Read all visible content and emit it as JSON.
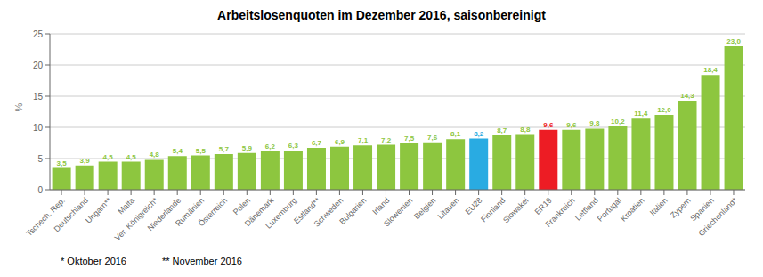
{
  "chart_data": {
    "type": "bar",
    "title": "Arbeitslosenquoten im Dezember 2016, saisonbereinigt",
    "ylabel": "%",
    "annotations": [
      "* Oktober 2016",
      "** November 2016"
    ],
    "categories": [
      "Tschech. Rep.",
      "Deutschland",
      "Ungarn**",
      "Malta",
      "Ver. Königreich*",
      "Niederlande",
      "Rumänien",
      "Österreich",
      "Polen",
      "Dänemark",
      "Luxemburg",
      "Estland**",
      "Schweden",
      "Bulgarien",
      "Irland",
      "Slowenien",
      "Belgien",
      "Litauen",
      "EU28",
      "Finnland",
      "Slowakei",
      "ER19",
      "Frankreich",
      "Lettland",
      "Portugal",
      "Kroatien",
      "Italien",
      "Zypern",
      "Spanien",
      "Griechenland*"
    ],
    "values": [
      3.5,
      3.9,
      4.5,
      4.5,
      4.8,
      5.4,
      5.5,
      5.7,
      5.9,
      6.2,
      6.3,
      6.7,
      6.9,
      7.1,
      7.2,
      7.5,
      7.6,
      8.1,
      8.2,
      8.7,
      8.8,
      9.6,
      9.6,
      9.8,
      10.2,
      11.4,
      12.0,
      14.3,
      18.4,
      23.0
    ],
    "value_labels": [
      "3,5",
      "3,9",
      "4,5",
      "4,5",
      "4,8",
      "5,4",
      "5,5",
      "5,7",
      "5,9",
      "6,2",
      "6,3",
      "6,7",
      "6,9",
      "7,1",
      "7,2",
      "7,5",
      "7,6",
      "8,1",
      "8,2",
      "8,7",
      "8,8",
      "9,6",
      "9,6",
      "9,8",
      "10,2",
      "11,4",
      "12,0",
      "14,3",
      "18,4",
      "23,0"
    ],
    "data_labels": true,
    "colors": [
      "#8dc63f",
      "#8dc63f",
      "#8dc63f",
      "#8dc63f",
      "#8dc63f",
      "#8dc63f",
      "#8dc63f",
      "#8dc63f",
      "#8dc63f",
      "#8dc63f",
      "#8dc63f",
      "#8dc63f",
      "#8dc63f",
      "#8dc63f",
      "#8dc63f",
      "#8dc63f",
      "#8dc63f",
      "#8dc63f",
      "#29abe2",
      "#8dc63f",
      "#8dc63f",
      "#ed1c24",
      "#8dc63f",
      "#8dc63f",
      "#8dc63f",
      "#8dc63f",
      "#8dc63f",
      "#8dc63f",
      "#8dc63f",
      "#8dc63f"
    ],
    "ylim": [
      0,
      25
    ],
    "yticks": [
      0,
      5,
      10,
      15,
      20,
      25
    ],
    "grid": true
  }
}
